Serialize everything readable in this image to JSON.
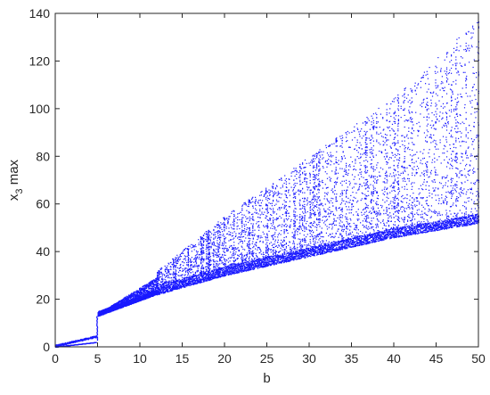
{
  "chart_data": {
    "type": "scatter",
    "title": "",
    "xlabel": "b",
    "ylabel": "x",
    "ylabel_subscript": "3",
    "ylabel_suffix": " max",
    "xlim": [
      0,
      50
    ],
    "ylim": [
      0,
      140
    ],
    "xticks": [
      0,
      5,
      10,
      15,
      20,
      25,
      30,
      35,
      40,
      45,
      50
    ],
    "yticks": [
      0,
      20,
      40,
      60,
      80,
      100,
      120,
      140
    ],
    "grid": false,
    "legend": "none",
    "marker_color": "#1a1aff",
    "description_points": "bifurcation diagram: x3 max vs b",
    "regimes": [
      {
        "b_range": [
          0,
          4.8
        ],
        "branches": [
          [
            0,
            0
          ],
          [
            4.8,
            4
          ]
        ]
      },
      {
        "b_range": [
          4.8,
          5
        ],
        "jump_to": 13
      },
      {
        "b_range": [
          5,
          12
        ],
        "lower": [
          13,
          22
        ],
        "upper": [
          14,
          30
        ]
      },
      {
        "b_range": [
          12,
          50
        ],
        "lower_envelope": [
          [
            12,
            22
          ],
          [
            20,
            30
          ],
          [
            30,
            38
          ],
          [
            40,
            46
          ],
          [
            50,
            52
          ]
        ],
        "upper_envelope": [
          [
            12,
            32
          ],
          [
            20,
            55
          ],
          [
            30,
            80
          ],
          [
            40,
            105
          ],
          [
            50,
            138
          ]
        ]
      }
    ]
  }
}
